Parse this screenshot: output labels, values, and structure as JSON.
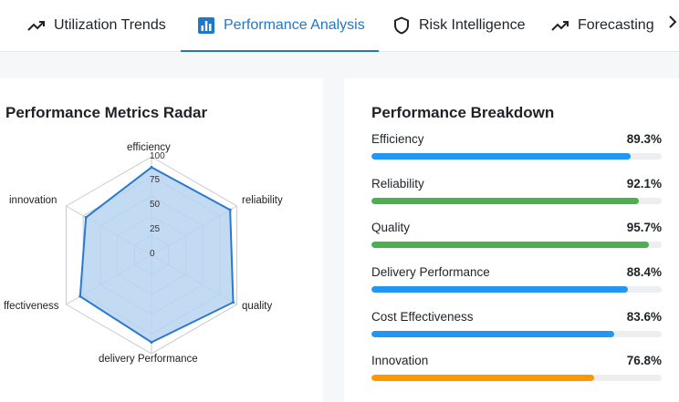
{
  "tabs": [
    {
      "label": "Utilization Trends",
      "icon": "trending-up-icon",
      "active": false
    },
    {
      "label": "Performance Analysis",
      "icon": "bar-chart-icon",
      "active": true
    },
    {
      "label": "Risk Intelligence",
      "icon": "shield-icon",
      "active": false
    },
    {
      "label": "Forecasting",
      "icon": "trending-up-icon",
      "active": false
    }
  ],
  "tabs_next_icon": "chevron-right-icon",
  "radar": {
    "title": "Performance Metrics Radar",
    "axes": [
      "efficiency",
      "reliability",
      "quality",
      "delivery Performance",
      "Cost Effectiveness",
      "innovation"
    ],
    "axis_display": [
      "efficiency",
      "reliability",
      "quality",
      "delivery Performance",
      "ffectiveness",
      "innovation"
    ],
    "ticks": [
      "100",
      "75",
      "50",
      "25",
      "0"
    ],
    "values": [
      89.3,
      92.1,
      95.7,
      88.4,
      83.6,
      76.8
    ],
    "colors": {
      "stroke": "#2a79d0",
      "fill": "#b8d3f1",
      "grid": "#c8cbd0"
    }
  },
  "breakdown": {
    "title": "Performance Breakdown",
    "items": [
      {
        "name": "Efficiency",
        "value": "89.3%",
        "pct": 89.3,
        "color": "#2196f3"
      },
      {
        "name": "Reliability",
        "value": "92.1%",
        "pct": 92.1,
        "color": "#4caf50"
      },
      {
        "name": "Quality",
        "value": "95.7%",
        "pct": 95.7,
        "color": "#4caf50"
      },
      {
        "name": "Delivery Performance",
        "value": "88.4%",
        "pct": 88.4,
        "color": "#2196f3"
      },
      {
        "name": "Cost Effectiveness",
        "value": "83.6%",
        "pct": 83.6,
        "color": "#2196f3"
      },
      {
        "name": "Innovation",
        "value": "76.8%",
        "pct": 76.8,
        "color": "#ff9800"
      }
    ]
  }
}
